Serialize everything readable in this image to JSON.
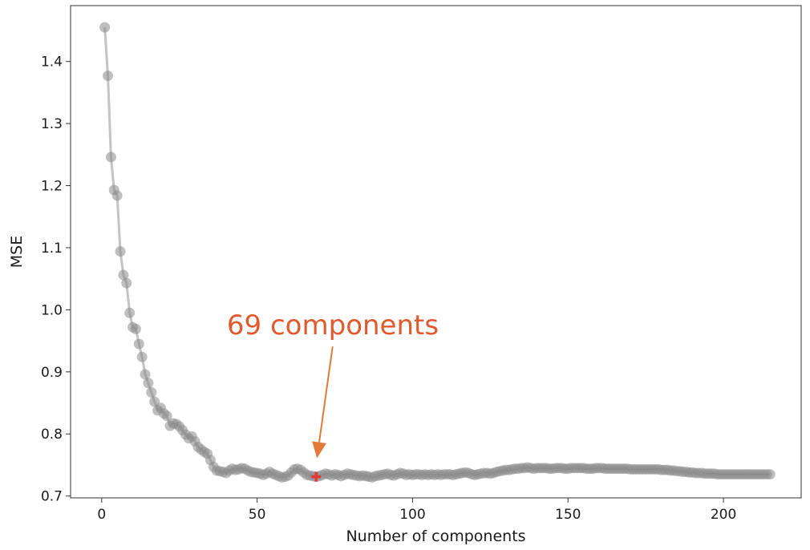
{
  "chart_data": {
    "type": "line",
    "title": "",
    "xlabel": "Number of components",
    "ylabel": "MSE",
    "xlim": [
      -10,
      225
    ],
    "ylim": [
      0.697,
      1.49
    ],
    "xticks": [
      0,
      50,
      100,
      150,
      200
    ],
    "xtick_labels": [
      "0",
      "50",
      "100",
      "150",
      "200"
    ],
    "yticks": [
      0.7,
      0.8,
      0.9,
      1.0,
      1.1,
      1.2,
      1.3,
      1.4
    ],
    "ytick_labels": [
      "0.7",
      "0.8",
      "0.9",
      "1.0",
      "1.1",
      "1.2",
      "1.3",
      "1.4"
    ],
    "grid": false,
    "line_color": "#c4c4c4",
    "marker_color": "#8a8a8a",
    "series": [
      {
        "x": [
          1,
          2,
          3,
          4,
          5,
          6,
          7,
          8,
          9,
          10,
          11,
          12,
          13,
          14,
          15,
          16,
          17,
          18,
          19,
          20,
          21,
          22,
          23,
          24,
          25,
          26,
          27,
          28,
          29,
          30,
          31,
          32,
          33,
          34,
          35,
          36,
          37,
          38,
          39,
          40,
          41,
          42,
          43,
          44,
          45,
          46,
          47,
          48,
          49,
          50,
          51,
          52,
          53,
          54,
          55,
          56,
          57,
          58,
          59,
          60,
          61,
          62,
          63,
          64,
          65,
          66,
          67,
          68,
          69,
          70,
          71,
          72,
          73,
          74,
          75,
          76,
          77,
          78,
          79,
          80,
          81,
          82,
          83,
          84,
          85,
          86,
          87,
          88,
          89,
          90,
          91,
          92,
          93,
          94,
          95,
          96,
          97,
          98,
          99,
          100,
          101,
          102,
          103,
          104,
          105,
          106,
          107,
          108,
          109,
          110,
          111,
          112,
          113,
          114,
          115,
          116,
          117,
          118,
          119,
          120,
          121,
          122,
          123,
          124,
          125,
          126,
          127,
          128,
          129,
          130,
          131,
          132,
          133,
          134,
          135,
          136,
          137,
          138,
          139,
          140,
          141,
          142,
          143,
          144,
          145,
          146,
          147,
          148,
          149,
          150,
          151,
          152,
          153,
          154,
          155,
          156,
          157,
          158,
          159,
          160,
          161,
          162,
          163,
          164,
          165,
          166,
          167,
          168,
          169,
          170,
          171,
          172,
          173,
          174,
          175,
          176,
          177,
          178,
          179,
          180,
          181,
          182,
          183,
          184,
          185,
          186,
          187,
          188,
          189,
          190,
          191,
          192,
          193,
          194,
          195,
          196,
          197,
          198,
          199,
          200,
          201,
          202,
          203,
          204,
          205,
          206,
          207,
          208,
          209,
          210,
          211,
          212,
          213,
          214,
          215
        ],
        "y": [
          1.455,
          1.377,
          1.246,
          1.193,
          1.184,
          1.094,
          1.056,
          1.043,
          0.995,
          0.972,
          0.969,
          0.945,
          0.924,
          0.896,
          0.882,
          0.867,
          0.852,
          0.838,
          0.842,
          0.833,
          0.829,
          0.813,
          0.817,
          0.816,
          0.812,
          0.806,
          0.799,
          0.793,
          0.796,
          0.788,
          0.779,
          0.775,
          0.771,
          0.768,
          0.758,
          0.747,
          0.741,
          0.74,
          0.739,
          0.737,
          0.741,
          0.744,
          0.742,
          0.743,
          0.745,
          0.744,
          0.741,
          0.739,
          0.738,
          0.737,
          0.736,
          0.734,
          0.736,
          0.739,
          0.736,
          0.734,
          0.732,
          0.73,
          0.731,
          0.733,
          0.738,
          0.743,
          0.744,
          0.742,
          0.738,
          0.734,
          0.733,
          0.732,
          0.731,
          0.732,
          0.734,
          0.736,
          0.735,
          0.733,
          0.735,
          0.734,
          0.732,
          0.734,
          0.736,
          0.735,
          0.734,
          0.733,
          0.732,
          0.733,
          0.732,
          0.731,
          0.73,
          0.732,
          0.733,
          0.734,
          0.735,
          0.736,
          0.734,
          0.733,
          0.735,
          0.737,
          0.736,
          0.734,
          0.735,
          0.734,
          0.735,
          0.735,
          0.734,
          0.735,
          0.734,
          0.735,
          0.734,
          0.735,
          0.734,
          0.735,
          0.735,
          0.735,
          0.734,
          0.735,
          0.736,
          0.737,
          0.738,
          0.737,
          0.735,
          0.734,
          0.735,
          0.736,
          0.737,
          0.737,
          0.736,
          0.737,
          0.739,
          0.74,
          0.741,
          0.742,
          0.742,
          0.743,
          0.744,
          0.744,
          0.745,
          0.745,
          0.746,
          0.745,
          0.744,
          0.745,
          0.745,
          0.745,
          0.745,
          0.744,
          0.744,
          0.745,
          0.745,
          0.745,
          0.744,
          0.744,
          0.745,
          0.745,
          0.745,
          0.745,
          0.745,
          0.744,
          0.744,
          0.744,
          0.745,
          0.745,
          0.745,
          0.744,
          0.744,
          0.744,
          0.744,
          0.744,
          0.744,
          0.744,
          0.744,
          0.743,
          0.743,
          0.743,
          0.743,
          0.743,
          0.743,
          0.743,
          0.743,
          0.743,
          0.743,
          0.742,
          0.742,
          0.742,
          0.741,
          0.741,
          0.74,
          0.74,
          0.739,
          0.739,
          0.738,
          0.738,
          0.737,
          0.737,
          0.737,
          0.736,
          0.736,
          0.736,
          0.736,
          0.735,
          0.735,
          0.735,
          0.735,
          0.735,
          0.735,
          0.735,
          0.735,
          0.735,
          0.735,
          0.735,
          0.735,
          0.735,
          0.735,
          0.735,
          0.735,
          0.735,
          0.735
        ]
      }
    ],
    "highlight_point": {
      "x": 69,
      "y": 0.731,
      "color": "#e03a32"
    },
    "annotation": {
      "text": "69 components",
      "color": "#e05a2e",
      "arrow_color": "#e07b3c",
      "text_x": 69,
      "text_y": 0.976,
      "arrow_tail_y": 0.941,
      "arrow_head_y": 0.761,
      "tail_x": 73
    }
  }
}
